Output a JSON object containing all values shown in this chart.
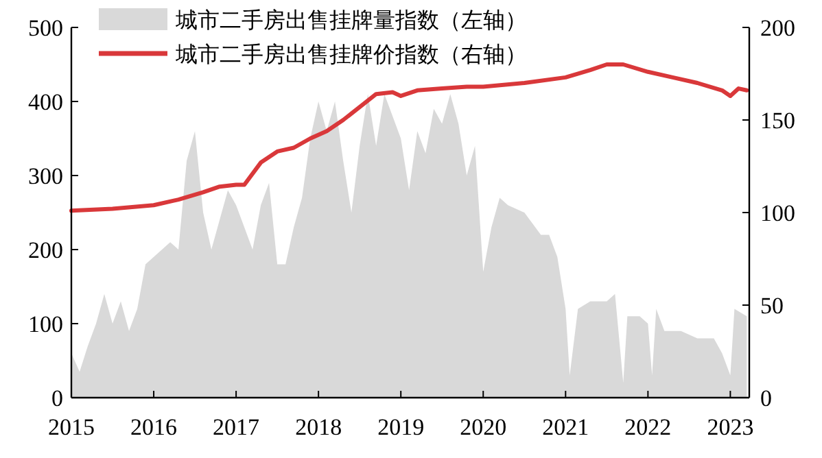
{
  "chart_data": {
    "type": "area",
    "xlim": [
      2015,
      2023.23
    ],
    "xticks": [
      2015,
      2016,
      2017,
      2018,
      2019,
      2020,
      2021,
      2022,
      2023
    ],
    "ylim": [
      0,
      500
    ],
    "yticks": [
      0,
      100,
      200,
      300,
      400,
      500
    ],
    "y2lim": [
      0,
      200
    ],
    "y2ticks": [
      0,
      50,
      100,
      150,
      200
    ],
    "grid": false,
    "legend": "top",
    "series": [
      {
        "name": "城市二手房出售挂牌量指数（左轴）",
        "color": "#d9d9d9",
        "x": [
          2015.0,
          2015.1,
          2015.2,
          2015.3,
          2015.4,
          2015.5,
          2015.6,
          2015.7,
          2015.8,
          2015.9,
          2016.0,
          2016.1,
          2016.2,
          2016.3,
          2016.4,
          2016.5,
          2016.6,
          2016.7,
          2016.8,
          2016.9,
          2017.0,
          2017.1,
          2017.2,
          2017.3,
          2017.4,
          2017.5,
          2017.6,
          2017.7,
          2017.8,
          2017.9,
          2018.0,
          2018.1,
          2018.2,
          2018.3,
          2018.4,
          2018.5,
          2018.6,
          2018.7,
          2018.8,
          2018.9,
          2019.0,
          2019.1,
          2019.2,
          2019.3,
          2019.4,
          2019.5,
          2019.6,
          2019.7,
          2019.8,
          2019.9,
          2020.0,
          2020.1,
          2020.2,
          2020.3,
          2020.5,
          2020.7,
          2020.8,
          2020.9,
          2021.0,
          2021.05,
          2021.15,
          2021.3,
          2021.5,
          2021.6,
          2021.7,
          2021.75,
          2021.9,
          2022.0,
          2022.05,
          2022.1,
          2022.2,
          2022.4,
          2022.6,
          2022.8,
          2022.9,
          2023.0,
          2023.05,
          2023.2
        ],
        "values": [
          60,
          35,
          70,
          100,
          140,
          100,
          130,
          90,
          120,
          180,
          190,
          200,
          210,
          200,
          320,
          360,
          250,
          200,
          240,
          280,
          260,
          230,
          200,
          260,
          290,
          180,
          180,
          230,
          270,
          350,
          400,
          360,
          400,
          320,
          250,
          340,
          410,
          340,
          410,
          380,
          350,
          280,
          360,
          330,
          390,
          370,
          410,
          370,
          300,
          340,
          170,
          230,
          270,
          260,
          250,
          220,
          220,
          190,
          120,
          30,
          120,
          130,
          130,
          140,
          20,
          110,
          110,
          100,
          30,
          120,
          90,
          90,
          80,
          80,
          60,
          30,
          120,
          110
        ]
      },
      {
        "name": "城市二手房出售挂牌价指数（右轴）",
        "type": "line",
        "axis": "y2",
        "color": "#d9383a",
        "x": [
          2015.0,
          2015.5,
          2016.0,
          2016.3,
          2016.6,
          2016.8,
          2017.0,
          2017.1,
          2017.3,
          2017.5,
          2017.7,
          2017.9,
          2018.1,
          2018.3,
          2018.5,
          2018.7,
          2018.9,
          2019.0,
          2019.2,
          2019.5,
          2019.8,
          2020.0,
          2020.5,
          2021.0,
          2021.3,
          2021.5,
          2021.7,
          2022.0,
          2022.3,
          2022.6,
          2022.9,
          2023.0,
          2023.1,
          2023.2
        ],
        "values": [
          101,
          102,
          104,
          107,
          111,
          114,
          115,
          115,
          127,
          133,
          135,
          140,
          144,
          150,
          157,
          164,
          165,
          163,
          166,
          167,
          168,
          168,
          170,
          173,
          177,
          180,
          180,
          176,
          173,
          170,
          166,
          163,
          167,
          166
        ]
      }
    ]
  }
}
